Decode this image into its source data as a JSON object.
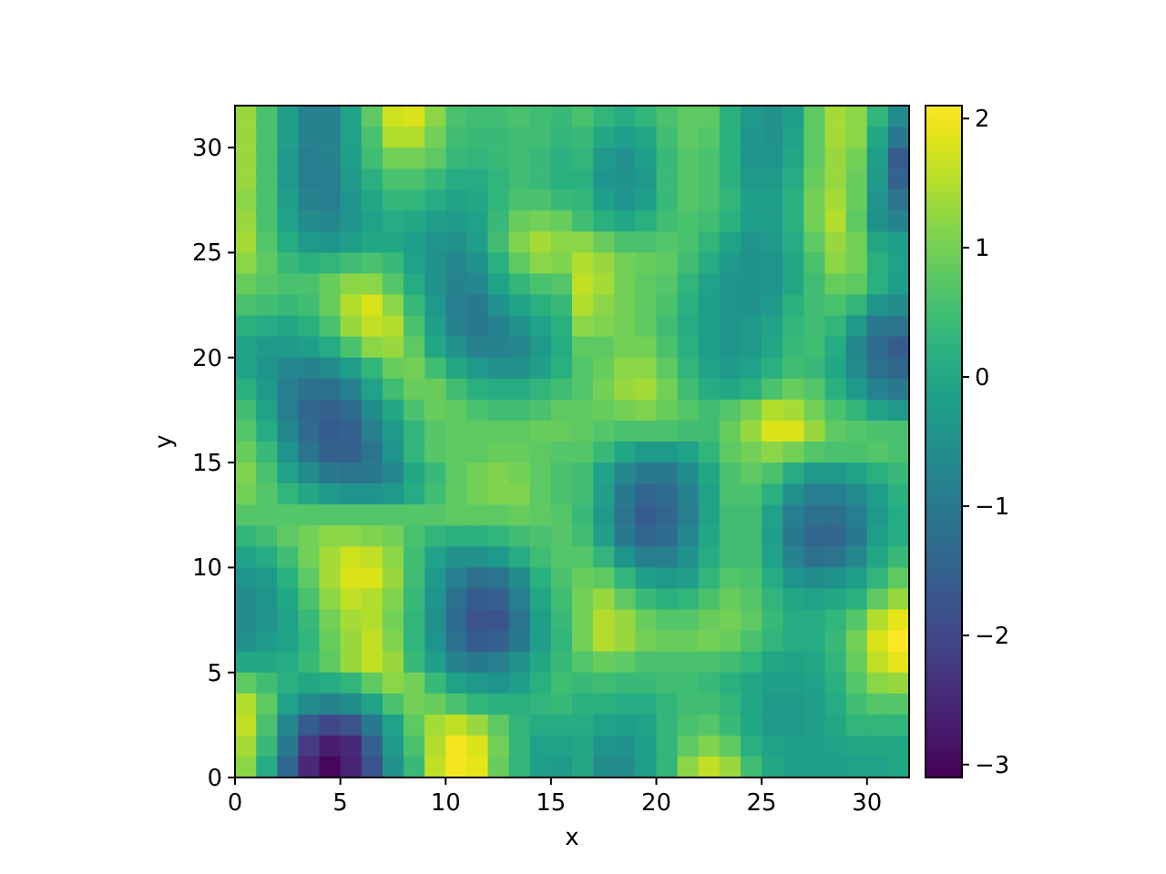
{
  "chart_data": {
    "type": "heatmap",
    "xlabel": "x",
    "ylabel": "y",
    "xlim": [
      0,
      32
    ],
    "ylim": [
      0,
      32
    ],
    "xticks": [
      0,
      5,
      10,
      15,
      20,
      25,
      30
    ],
    "yticks": [
      0,
      5,
      10,
      15,
      20,
      25,
      30
    ],
    "clim": [
      -3.1,
      2.1
    ],
    "cticks": [
      {
        "value": -3,
        "label": "−3"
      },
      {
        "value": -2,
        "label": "−2"
      },
      {
        "value": -1,
        "label": "−1"
      },
      0,
      1,
      2
    ],
    "cells": [
      [
        1.3,
        0.6,
        -0.2,
        -0.8,
        -0.8,
        -0.1,
        0.8,
        1.7,
        1.8,
        1.2,
        0.6,
        0.5,
        0.5,
        0.6,
        0.5,
        0.4,
        0.6,
        0.3,
        0.1,
        0.3,
        0.6,
        0.8,
        0.8,
        0.2,
        -0.3,
        -0.5,
        -0.2,
        0.8,
        1.4,
        1.2,
        0.3,
        -0.6
      ],
      [
        1.3,
        0.6,
        -0.2,
        -0.8,
        -0.8,
        -0.1,
        0.6,
        1.5,
        1.5,
        1.0,
        0.5,
        0.4,
        0.4,
        0.5,
        0.5,
        0.3,
        0.4,
        0.0,
        -0.2,
        0.0,
        0.5,
        0.8,
        0.7,
        0.2,
        -0.4,
        -0.5,
        -0.1,
        0.8,
        1.4,
        1.2,
        0.0,
        -1.0
      ],
      [
        1.3,
        0.6,
        -0.3,
        -0.9,
        -0.8,
        -0.2,
        0.5,
        1.0,
        1.0,
        0.8,
        0.4,
        0.3,
        0.4,
        0.5,
        0.4,
        0.2,
        0.3,
        -0.3,
        -0.5,
        -0.2,
        0.4,
        0.7,
        0.6,
        0.2,
        -0.4,
        -0.4,
        0.0,
        0.8,
        1.3,
        1.0,
        -0.2,
        -1.6
      ],
      [
        1.3,
        0.6,
        -0.3,
        -0.9,
        -0.9,
        -0.3,
        0.2,
        0.6,
        0.6,
        0.4,
        0.1,
        0.1,
        0.3,
        0.5,
        0.4,
        0.2,
        0.2,
        -0.4,
        -0.5,
        -0.3,
        0.4,
        0.7,
        0.6,
        0.2,
        -0.3,
        -0.3,
        0.1,
        0.9,
        1.3,
        0.9,
        -0.3,
        -1.5
      ],
      [
        1.2,
        0.6,
        -0.2,
        -0.8,
        -0.9,
        -0.4,
        0.0,
        0.3,
        0.3,
        0.1,
        -0.1,
        0.0,
        0.3,
        0.6,
        0.6,
        0.4,
        0.3,
        -0.2,
        -0.4,
        -0.2,
        0.4,
        0.7,
        0.6,
        0.3,
        -0.2,
        -0.2,
        0.2,
        1.0,
        1.4,
        0.9,
        -0.4,
        -1.1
      ],
      [
        1.3,
        0.6,
        -0.1,
        -0.6,
        -0.7,
        -0.4,
        -0.1,
        0.1,
        0.0,
        -0.2,
        -0.3,
        -0.1,
        0.4,
        0.9,
        1.0,
        0.9,
        0.5,
        0.2,
        0.0,
        0.2,
        0.5,
        0.6,
        0.5,
        0.2,
        -0.2,
        -0.2,
        0.2,
        1.0,
        1.5,
        0.8,
        -0.5,
        -0.8
      ],
      [
        1.4,
        0.7,
        0.1,
        -0.3,
        -0.4,
        -0.2,
        0.0,
        0.0,
        -0.2,
        -0.4,
        -0.5,
        -0.2,
        0.5,
        1.1,
        1.4,
        1.2,
        1.2,
        0.9,
        0.6,
        0.6,
        0.7,
        0.6,
        0.3,
        -0.1,
        -0.4,
        -0.3,
        0.1,
        0.8,
        1.3,
        1.0,
        0.0,
        -0.2
      ],
      [
        1.2,
        0.8,
        0.4,
        0.2,
        0.3,
        0.5,
        0.6,
        0.4,
        -0.1,
        -0.5,
        -0.7,
        -0.5,
        0.2,
        0.8,
        1.2,
        1.1,
        1.5,
        1.3,
        1.0,
        0.9,
        0.8,
        0.5,
        0.1,
        -0.3,
        -0.5,
        -0.4,
        0.0,
        0.6,
        1.2,
        1.0,
        0.2,
        -0.1
      ],
      [
        0.9,
        0.7,
        0.6,
        0.6,
        0.9,
        1.2,
        1.2,
        0.7,
        0.1,
        -0.5,
        -0.8,
        -0.7,
        -0.1,
        0.3,
        0.6,
        0.7,
        1.6,
        1.4,
        1.0,
        0.8,
        0.7,
        0.3,
        -0.1,
        -0.4,
        -0.5,
        -0.4,
        0.0,
        0.5,
        0.9,
        0.8,
        0.2,
        -0.2
      ],
      [
        0.6,
        0.5,
        0.4,
        0.5,
        0.9,
        1.5,
        1.8,
        1.2,
        0.4,
        -0.3,
        -0.9,
        -1.0,
        -0.5,
        -0.1,
        0.2,
        0.4,
        1.5,
        1.2,
        1.0,
        0.8,
        0.6,
        0.2,
        -0.2,
        -0.4,
        -0.5,
        -0.3,
        0.2,
        0.5,
        0.6,
        0.3,
        -0.4,
        -0.6
      ],
      [
        0.2,
        0.1,
        0.0,
        0.2,
        0.6,
        1.3,
        1.6,
        1.5,
        0.6,
        -0.2,
        -0.8,
        -1.0,
        -0.8,
        -0.5,
        -0.1,
        0.2,
        1.2,
        1.1,
        1.0,
        0.8,
        0.5,
        0.1,
        -0.2,
        -0.4,
        -0.3,
        -0.1,
        0.3,
        0.5,
        0.3,
        -0.3,
        -1.0,
        -1.1
      ],
      [
        -0.1,
        -0.3,
        -0.3,
        -0.2,
        0.1,
        0.6,
        1.2,
        1.3,
        0.8,
        0.0,
        -0.5,
        -0.8,
        -0.8,
        -0.7,
        -0.3,
        0.1,
        0.8,
        0.8,
        1.0,
        1.0,
        0.6,
        0.2,
        -0.2,
        -0.4,
        -0.3,
        0.0,
        0.4,
        0.5,
        0.1,
        -0.7,
        -1.3,
        -1.6
      ],
      [
        -0.1,
        -0.4,
        -0.7,
        -0.8,
        -0.6,
        -0.2,
        0.3,
        0.9,
        1.0,
        0.5,
        0.0,
        -0.3,
        -0.5,
        -0.5,
        -0.2,
        0.2,
        0.7,
        0.9,
        1.2,
        1.2,
        0.8,
        0.3,
        -0.1,
        -0.3,
        -0.1,
        0.2,
        0.5,
        0.4,
        0.0,
        -0.6,
        -1.2,
        -1.4
      ],
      [
        0.2,
        -0.3,
        -0.9,
        -1.2,
        -1.2,
        -0.8,
        -0.1,
        0.5,
        0.9,
        0.9,
        0.5,
        0.2,
        0.1,
        0.1,
        0.3,
        0.5,
        0.7,
        1.0,
        1.3,
        1.4,
        1.0,
        0.5,
        0.1,
        0.0,
        0.2,
        0.6,
        0.9,
        0.7,
        0.2,
        -0.3,
        -0.8,
        -1.0
      ],
      [
        0.5,
        -0.1,
        -0.9,
        -1.4,
        -1.5,
        -1.3,
        -0.6,
        0.0,
        0.6,
        0.9,
        0.8,
        0.6,
        0.5,
        0.5,
        0.6,
        0.8,
        0.8,
        0.9,
        1.0,
        1.1,
        0.9,
        0.7,
        0.5,
        0.7,
        1.0,
        1.5,
        1.4,
        1.0,
        0.6,
        0.3,
        -0.1,
        -0.3
      ],
      [
        0.7,
        0.1,
        -0.7,
        -1.3,
        -1.6,
        -1.5,
        -0.9,
        -0.3,
        0.3,
        0.7,
        0.8,
        0.8,
        0.8,
        0.8,
        0.9,
        0.9,
        0.8,
        0.7,
        0.6,
        0.6,
        0.6,
        0.5,
        0.5,
        0.9,
        1.3,
        1.8,
        1.8,
        1.3,
        0.8,
        0.7,
        0.6,
        0.6
      ],
      [
        0.9,
        0.4,
        -0.4,
        -1.1,
        -1.5,
        -1.5,
        -1.1,
        -0.4,
        0.3,
        0.7,
        0.8,
        0.8,
        0.9,
        0.9,
        0.8,
        0.7,
        0.7,
        0.4,
        0.0,
        -0.3,
        -0.3,
        -0.1,
        0.3,
        0.8,
        1.0,
        1.2,
        1.0,
        0.7,
        0.6,
        0.6,
        0.7,
        0.6
      ],
      [
        1.1,
        0.6,
        -0.1,
        -0.6,
        -1.0,
        -1.1,
        -1.0,
        -0.7,
        0.0,
        0.4,
        0.8,
        1.0,
        1.1,
        1.0,
        0.8,
        0.6,
        0.5,
        -0.1,
        -0.7,
        -1.0,
        -1.0,
        -0.6,
        0.0,
        0.6,
        0.8,
        0.6,
        0.1,
        -0.3,
        -0.3,
        -0.1,
        0.2,
        0.4
      ],
      [
        1.0,
        0.7,
        0.3,
        0.0,
        -0.3,
        -0.4,
        -0.4,
        -0.3,
        0.1,
        0.5,
        0.8,
        1.0,
        1.1,
        1.1,
        0.8,
        0.6,
        0.5,
        -0.2,
        -1.0,
        -1.4,
        -1.3,
        -0.8,
        -0.1,
        0.6,
        0.6,
        0.2,
        -0.5,
        -0.9,
        -0.9,
        -0.6,
        -0.2,
        0.2
      ],
      [
        0.7,
        0.7,
        0.7,
        0.7,
        0.7,
        0.7,
        0.7,
        0.7,
        0.7,
        0.7,
        0.8,
        0.8,
        0.8,
        0.9,
        0.8,
        0.7,
        0.4,
        -0.3,
        -1.1,
        -1.6,
        -1.4,
        -0.9,
        -0.1,
        0.5,
        0.5,
        -0.1,
        -0.9,
        -1.2,
        -1.2,
        -0.9,
        -0.3,
        0.1
      ],
      [
        0.3,
        0.5,
        0.8,
        1.0,
        1.2,
        1.2,
        1.1,
        1.0,
        0.6,
        0.3,
        0.2,
        0.2,
        0.3,
        0.5,
        0.6,
        0.7,
        0.5,
        -0.2,
        -1.0,
        -1.4,
        -1.3,
        -0.7,
        0.0,
        0.5,
        0.5,
        -0.2,
        -1.0,
        -1.4,
        -1.4,
        -1.0,
        -0.2,
        0.1
      ],
      [
        -0.1,
        0.1,
        0.5,
        1.0,
        1.4,
        1.7,
        1.6,
        1.2,
        0.5,
        -0.1,
        -0.5,
        -0.5,
        -0.3,
        0.1,
        0.5,
        0.7,
        0.7,
        0.3,
        -0.4,
        -0.9,
        -0.9,
        -0.5,
        0.1,
        0.5,
        0.5,
        -0.1,
        -0.8,
        -1.2,
        -1.1,
        -0.7,
        0.0,
        0.4
      ],
      [
        -0.4,
        -0.3,
        0.2,
        0.8,
        1.4,
        1.8,
        1.8,
        1.3,
        0.5,
        -0.3,
        -0.9,
        -1.2,
        -1.1,
        -0.6,
        0.2,
        0.6,
        0.9,
        0.8,
        0.3,
        -0.2,
        -0.3,
        -0.2,
        0.3,
        0.7,
        0.6,
        0.1,
        -0.4,
        -0.6,
        -0.5,
        -0.2,
        0.3,
        0.8
      ],
      [
        -0.6,
        -0.4,
        0.0,
        0.6,
        1.2,
        1.6,
        1.5,
        1.1,
        0.4,
        -0.4,
        -1.2,
        -1.6,
        -1.5,
        -0.9,
        0.0,
        0.5,
        1.0,
        1.3,
        0.8,
        0.4,
        0.2,
        0.3,
        0.6,
        0.9,
        0.7,
        0.3,
        0.0,
        -0.1,
        0.0,
        0.2,
        0.8,
        1.3
      ],
      [
        -0.6,
        -0.4,
        -0.1,
        0.4,
        1.0,
        1.4,
        1.5,
        1.0,
        0.3,
        -0.5,
        -1.3,
        -1.8,
        -1.7,
        -1.1,
        -0.2,
        0.4,
        1.0,
        1.5,
        1.3,
        0.9,
        0.7,
        0.7,
        0.9,
        1.0,
        0.8,
        0.4,
        0.1,
        0.1,
        0.3,
        0.7,
        1.5,
        1.9
      ],
      [
        -0.5,
        -0.3,
        -0.1,
        0.3,
        0.9,
        1.3,
        1.6,
        1.1,
        0.3,
        -0.4,
        -1.2,
        -1.6,
        -1.5,
        -1.0,
        -0.2,
        0.3,
        1.0,
        1.5,
        1.3,
        1.0,
        0.9,
        0.9,
        1.0,
        0.9,
        0.6,
        0.3,
        0.1,
        0.1,
        0.4,
        1.0,
        1.8,
        2.1
      ],
      [
        0.0,
        0.0,
        0.1,
        0.4,
        0.8,
        1.3,
        1.6,
        1.3,
        0.4,
        -0.2,
        -0.8,
        -1.0,
        -0.9,
        -0.5,
        0.0,
        0.4,
        0.7,
        0.9,
        0.8,
        0.6,
        0.6,
        0.6,
        0.6,
        0.5,
        0.3,
        0.0,
        -0.1,
        0.0,
        0.3,
        0.9,
        1.6,
        1.9
      ],
      [
        0.8,
        0.5,
        0.2,
        0.0,
        0.1,
        0.3,
        0.8,
        1.2,
        1.0,
        0.4,
        -0.1,
        -0.3,
        -0.4,
        -0.2,
        0.2,
        0.5,
        0.4,
        0.5,
        0.4,
        0.4,
        0.5,
        0.5,
        0.4,
        0.2,
        0.0,
        -0.2,
        -0.2,
        -0.1,
        0.2,
        0.7,
        1.2,
        1.3
      ],
      [
        1.5,
        0.8,
        -0.1,
        -0.6,
        -0.8,
        -0.6,
        -0.1,
        0.6,
        1.0,
        0.9,
        0.6,
        0.3,
        0.2,
        0.2,
        0.3,
        0.4,
        0.2,
        0.2,
        0.1,
        0.1,
        0.3,
        0.5,
        0.5,
        0.3,
        0.0,
        -0.3,
        -0.3,
        -0.2,
        0.1,
        0.5,
        0.7,
        0.7
      ],
      [
        1.6,
        0.6,
        -0.7,
        -1.6,
        -2.0,
        -1.8,
        -1.0,
        -0.1,
        0.8,
        1.4,
        1.6,
        1.3,
        0.8,
        0.3,
        0.1,
        0.1,
        0.1,
        -0.1,
        -0.2,
        -0.1,
        0.3,
        0.6,
        0.7,
        0.4,
        0.0,
        -0.3,
        -0.3,
        -0.2,
        0.0,
        0.3,
        0.3,
        0.3
      ],
      [
        1.4,
        0.4,
        -1.0,
        -2.2,
        -2.7,
        -2.5,
        -1.5,
        -0.3,
        0.6,
        1.5,
        2.0,
        1.8,
        1.0,
        0.3,
        -0.1,
        -0.1,
        0.0,
        -0.4,
        -0.5,
        -0.2,
        0.3,
        0.8,
        1.1,
        0.8,
        0.2,
        -0.1,
        -0.2,
        -0.2,
        -0.1,
        0.0,
        0.0,
        0.0
      ],
      [
        1.2,
        0.1,
        -1.4,
        -2.5,
        -3.0,
        -2.6,
        -1.8,
        -0.5,
        0.4,
        1.6,
        2.0,
        1.9,
        0.9,
        0.3,
        -0.2,
        -0.3,
        0.0,
        -0.6,
        -0.6,
        -0.2,
        0.3,
        1.2,
        1.6,
        1.3,
        0.5,
        0.0,
        -0.2,
        -0.2,
        -0.2,
        -0.1,
        -0.1,
        0.0
      ]
    ]
  }
}
